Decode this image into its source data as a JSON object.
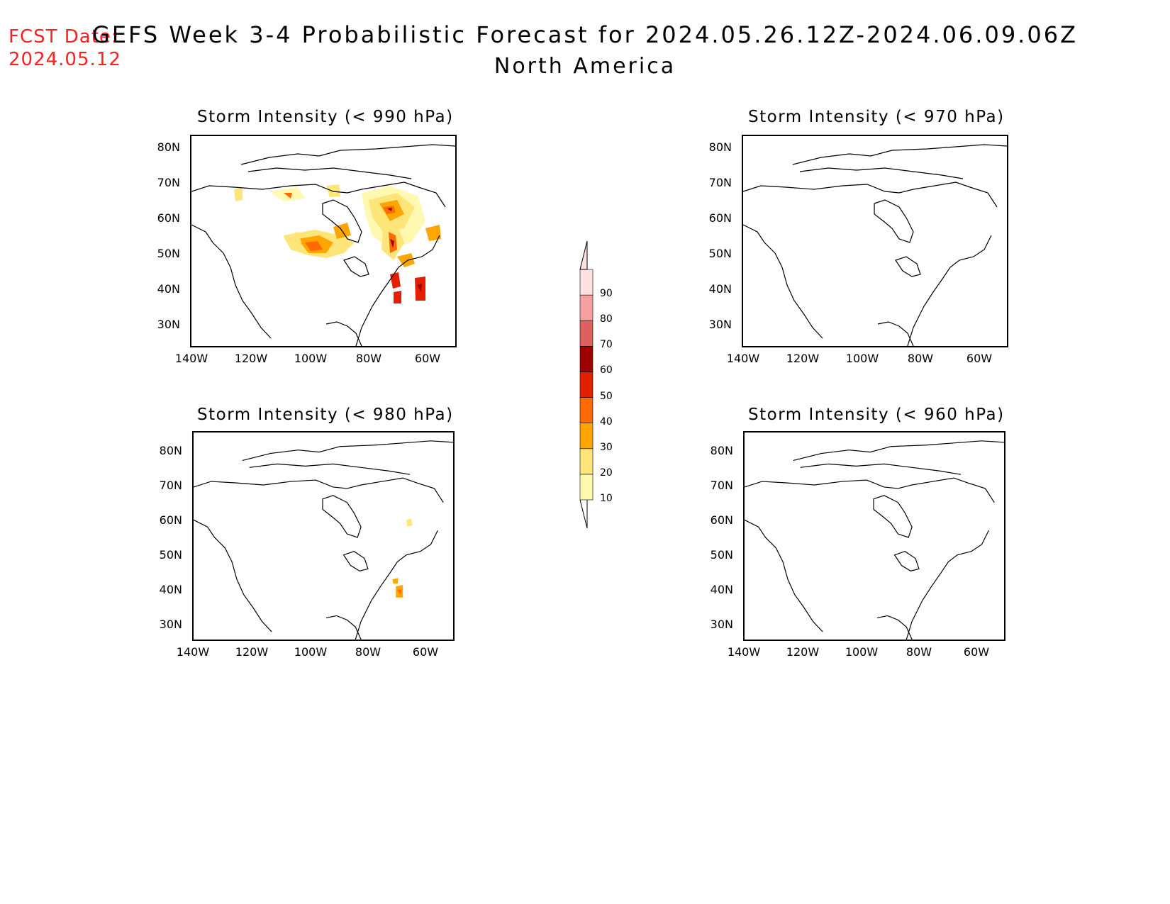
{
  "header": {
    "fcst_label": "FCST Date:",
    "fcst_date": "2024.05.12",
    "title": "GEFS Week 3-4 Probabilistic Forecast for 2024.05.26.12Z-2024.06.09.06Z",
    "subtitle": "North America"
  },
  "axes": {
    "lat_ticks": [
      "80N",
      "70N",
      "60N",
      "50N",
      "40N",
      "30N"
    ],
    "lon_ticks": [
      "140W",
      "120W",
      "100W",
      "80W",
      "60W"
    ]
  },
  "panels": [
    {
      "title": "Storm Intensity (< 990 hPa)",
      "activity": "high"
    },
    {
      "title": "Storm Intensity (< 970 hPa)",
      "activity": "none"
    },
    {
      "title": "Storm Intensity (< 980 hPa)",
      "activity": "low"
    },
    {
      "title": "Storm Intensity (< 960 hPa)",
      "activity": "none"
    }
  ],
  "colorbar": {
    "levels": [
      "10",
      "20",
      "30",
      "40",
      "50",
      "60",
      "70",
      "80",
      "90"
    ],
    "colors": [
      "#fff8b0",
      "#fde57a",
      "#ffa500",
      "#ff6a00",
      "#e61e00",
      "#a00000",
      "#e06060",
      "#f4a0a0",
      "#fde0e0"
    ]
  }
}
